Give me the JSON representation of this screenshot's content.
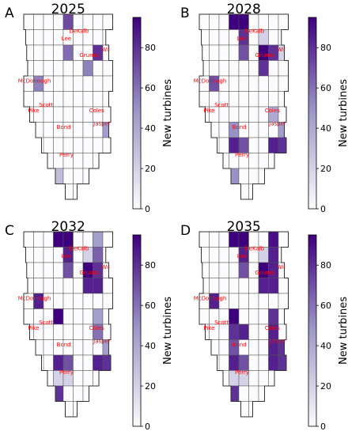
{
  "colormap": {
    "low": "#fcfbfd",
    "mid": "#9e9ac8",
    "high": "#3f007d"
  },
  "label_color": "#ff0000",
  "colorbar": {
    "label": "New turbines",
    "ticks": [
      0,
      20,
      40,
      60,
      80
    ],
    "range": [
      0,
      95
    ]
  },
  "county_labels": [
    "DeKalb",
    "Lee",
    "Wil",
    "Grundy",
    "McDonough",
    "Scott",
    "Pike",
    "Coles",
    "Bond",
    "Jasper",
    "Perry"
  ],
  "chart_data": [
    {
      "type": "choropleth",
      "panel_letter": "A",
      "title": "2025",
      "values": [
        [
          0,
          0,
          0,
          0,
          72,
          0,
          0,
          0,
          0
        ],
        [
          0,
          0,
          0,
          0,
          0,
          0,
          0,
          0,
          0
        ],
        [
          0,
          0,
          0,
          0,
          62,
          0,
          0,
          80,
          0
        ],
        [
          0,
          0,
          0,
          0,
          0,
          0,
          55,
          0,
          0
        ],
        [
          0,
          55,
          0,
          0,
          0,
          0,
          0,
          0,
          0
        ],
        [
          0,
          0,
          0,
          0,
          0,
          0,
          0,
          0,
          0
        ],
        [
          0,
          0,
          0,
          0,
          0,
          0,
          0,
          0,
          0
        ],
        [
          0,
          0,
          0,
          0,
          0,
          0,
          0,
          0,
          45
        ],
        [
          0,
          0,
          0,
          0,
          0,
          0,
          0,
          0,
          0
        ],
        [
          0,
          0,
          0,
          0,
          0,
          0,
          0,
          0,
          0
        ],
        [
          0,
          0,
          0,
          30,
          0,
          0,
          0,
          0,
          0
        ],
        [
          0,
          0,
          0,
          0,
          0,
          0,
          0,
          0,
          0
        ]
      ]
    },
    {
      "type": "choropleth",
      "panel_letter": "B",
      "title": "2028",
      "values": [
        [
          0,
          0,
          0,
          95,
          95,
          0,
          0,
          0,
          0
        ],
        [
          0,
          0,
          0,
          0,
          80,
          0,
          20,
          0,
          0
        ],
        [
          0,
          0,
          0,
          0,
          70,
          0,
          95,
          80,
          20
        ],
        [
          0,
          0,
          0,
          0,
          0,
          0,
          80,
          0,
          0
        ],
        [
          0,
          70,
          0,
          0,
          0,
          0,
          0,
          0,
          0
        ],
        [
          0,
          0,
          0,
          0,
          0,
          0,
          0,
          0,
          0
        ],
        [
          0,
          0,
          0,
          0,
          0,
          0,
          0,
          40,
          0
        ],
        [
          0,
          0,
          0,
          50,
          0,
          0,
          0,
          0,
          45
        ],
        [
          0,
          0,
          0,
          85,
          70,
          0,
          0,
          85,
          80
        ],
        [
          0,
          0,
          0,
          0,
          0,
          0,
          0,
          0,
          0
        ],
        [
          0,
          0,
          0,
          50,
          0,
          0,
          0,
          0,
          0
        ],
        [
          0,
          0,
          0,
          0,
          0,
          0,
          0,
          0,
          0
        ]
      ]
    },
    {
      "type": "choropleth",
      "panel_letter": "C",
      "title": "2032",
      "values": [
        [
          0,
          0,
          0,
          95,
          95,
          0,
          0,
          45,
          0
        ],
        [
          0,
          0,
          0,
          0,
          85,
          0,
          20,
          65,
          0
        ],
        [
          0,
          0,
          0,
          0,
          70,
          0,
          95,
          80,
          0
        ],
        [
          0,
          0,
          0,
          0,
          0,
          0,
          85,
          85,
          0
        ],
        [
          0,
          85,
          0,
          0,
          0,
          0,
          0,
          0,
          0
        ],
        [
          0,
          0,
          0,
          95,
          0,
          0,
          0,
          45,
          0
        ],
        [
          0,
          0,
          0,
          0,
          0,
          0,
          0,
          60,
          0
        ],
        [
          0,
          0,
          0,
          0,
          0,
          0,
          0,
          0,
          45
        ],
        [
          0,
          0,
          0,
          85,
          70,
          0,
          0,
          85,
          80
        ],
        [
          0,
          0,
          0,
          20,
          20,
          0,
          0,
          0,
          0
        ],
        [
          0,
          0,
          0,
          80,
          0,
          0,
          0,
          0,
          0
        ],
        [
          0,
          0,
          0,
          0,
          0,
          0,
          0,
          0,
          0
        ]
      ]
    },
    {
      "type": "choropleth",
      "panel_letter": "D",
      "title": "2035",
      "values": [
        [
          0,
          0,
          0,
          95,
          95,
          0,
          0,
          90,
          0
        ],
        [
          0,
          0,
          0,
          0,
          85,
          0,
          20,
          85,
          0
        ],
        [
          0,
          0,
          0,
          0,
          70,
          0,
          95,
          85,
          0
        ],
        [
          0,
          0,
          0,
          0,
          0,
          0,
          85,
          85,
          0
        ],
        [
          0,
          85,
          0,
          0,
          0,
          0,
          0,
          0,
          0
        ],
        [
          0,
          0,
          0,
          95,
          0,
          0,
          0,
          80,
          0
        ],
        [
          0,
          0,
          0,
          80,
          85,
          0,
          0,
          85,
          0
        ],
        [
          0,
          0,
          0,
          70,
          0,
          0,
          0,
          85,
          80
        ],
        [
          0,
          0,
          0,
          85,
          70,
          0,
          0,
          85,
          80
        ],
        [
          0,
          0,
          0,
          20,
          20,
          0,
          0,
          0,
          0
        ],
        [
          0,
          0,
          0,
          80,
          0,
          0,
          0,
          0,
          0
        ],
        [
          0,
          0,
          0,
          0,
          0,
          0,
          0,
          0,
          0
        ]
      ]
    }
  ]
}
